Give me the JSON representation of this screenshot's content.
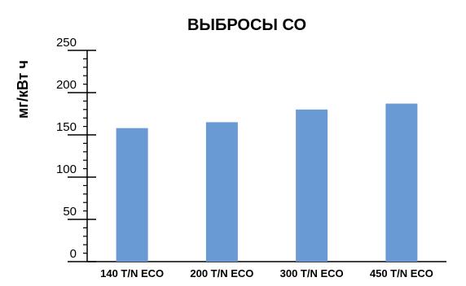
{
  "chart_data": {
    "type": "bar",
    "title": "ВЫБРОСЫ СО",
    "xlabel": "",
    "ylabel": "мг/кВт ч",
    "categories": [
      "140 T/N  ECO",
      "200 T/N  ECO",
      "300 T/N  ECO",
      "450 T/N ECO"
    ],
    "values": [
      158,
      165,
      180,
      187
    ],
    "ylim": [
      0,
      250
    ],
    "yticks": [
      0,
      50,
      100,
      150,
      200,
      250
    ],
    "ytick_labels": [
      "0",
      "50",
      "100",
      "150",
      "200",
      "250"
    ],
    "minor_tick_step": 10,
    "bar_color": "#6a9ad3",
    "axis_color": "#000000",
    "grid": false,
    "legend": "none"
  }
}
